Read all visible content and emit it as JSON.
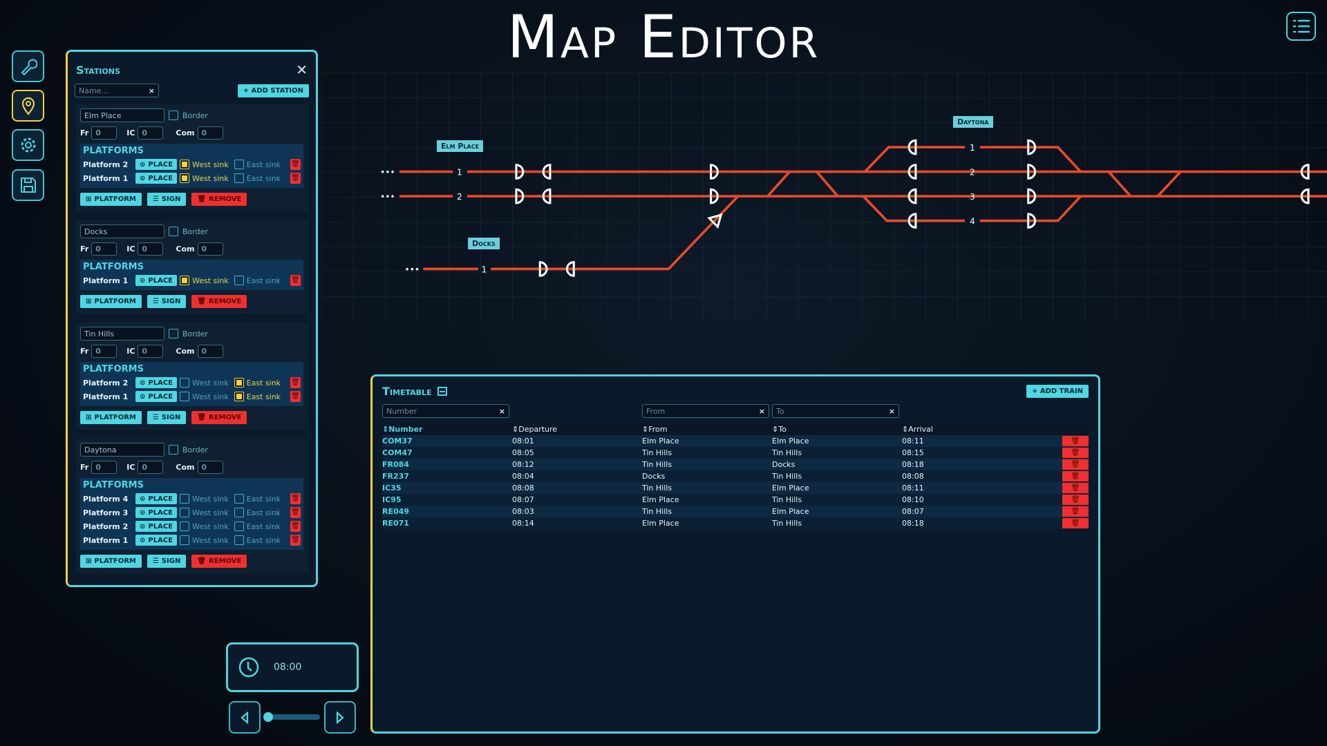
{
  "title": "Map Editor",
  "sidebar": {
    "items": [
      {
        "icon": "wrench-icon",
        "active": false
      },
      {
        "icon": "map-pin-icon",
        "active": true
      },
      {
        "icon": "gear-icon",
        "active": false
      },
      {
        "icon": "save-icon",
        "active": false
      }
    ]
  },
  "colors": {
    "accent": "#4fd6e2",
    "highlight": "#f3d23a",
    "danger": "#f03030",
    "track": "#e8492a"
  },
  "stations_panel": {
    "title": "Stations",
    "search_placeholder": "Name...",
    "add_label": "+ ADD STATION",
    "border_label": "Border",
    "fr_label": "Fr",
    "ic_label": "IC",
    "com_label": "Com",
    "platforms_heading": "PLATFORMS",
    "place_label": "PLACE",
    "west_label": "West sink",
    "east_label": "East sink",
    "platform_btn": "PLATFORM",
    "sign_btn": "SIGN",
    "remove_btn": "REMOVE",
    "stations": [
      {
        "name": "Elm Place",
        "fr": "0",
        "ic": "0",
        "com": "0",
        "platforms": [
          {
            "name": "Platform 2",
            "west": true,
            "east": false
          },
          {
            "name": "Platform 1",
            "west": true,
            "east": false
          }
        ]
      },
      {
        "name": "Docks",
        "fr": "0",
        "ic": "0",
        "com": "0",
        "platforms": [
          {
            "name": "Platform 1",
            "west": true,
            "east": false
          }
        ]
      },
      {
        "name": "Tin Hills",
        "fr": "0",
        "ic": "0",
        "com": "0",
        "platforms": [
          {
            "name": "Platform 2",
            "west": false,
            "east": true
          },
          {
            "name": "Platform 1",
            "west": false,
            "east": true
          }
        ]
      },
      {
        "name": "Daytona",
        "fr": "0",
        "ic": "0",
        "com": "0",
        "platforms": [
          {
            "name": "Platform 4",
            "west": false,
            "east": false
          },
          {
            "name": "Platform 3",
            "west": false,
            "east": false
          },
          {
            "name": "Platform 2",
            "west": false,
            "east": false
          },
          {
            "name": "Platform 1",
            "west": false,
            "east": false
          }
        ]
      }
    ]
  },
  "map": {
    "labels": {
      "elm": "Elm Place",
      "docks": "Docks",
      "daytona": "Daytona"
    },
    "tracks": {
      "elm1": "1",
      "elm2": "2",
      "docks1": "1",
      "d1": "1",
      "d2": "2",
      "d3": "3",
      "d4": "4"
    },
    "dashes": "•••"
  },
  "timetable": {
    "title": "Timetable",
    "add_label": "+ ADD TRAIN",
    "filters": {
      "number": "Number",
      "from": "From",
      "to": "To"
    },
    "columns": [
      "Number",
      "Departure",
      "From",
      "To",
      "Arrival"
    ],
    "rows": [
      [
        "COM37",
        "08:01",
        "Elm Place",
        "Elm Place",
        "08:11"
      ],
      [
        "COM47",
        "08:05",
        "Tin Hills",
        "Tin Hills",
        "08:15"
      ],
      [
        "FR084",
        "08:12",
        "Tin Hills",
        "Docks",
        "08:18"
      ],
      [
        "FR237",
        "08:04",
        "Docks",
        "Tin Hills",
        "08:08"
      ],
      [
        "IC35",
        "08:08",
        "Tin Hills",
        "Elm Place",
        "08:11"
      ],
      [
        "IC95",
        "08:07",
        "Elm Place",
        "Tin Hills",
        "08:10"
      ],
      [
        "RE049",
        "08:03",
        "Tin Hills",
        "Elm Place",
        "08:07"
      ],
      [
        "RE071",
        "08:14",
        "Elm Place",
        "Tin Hills",
        "08:18"
      ]
    ]
  },
  "clock": {
    "time": "08:00",
    "slider_value": 0
  }
}
